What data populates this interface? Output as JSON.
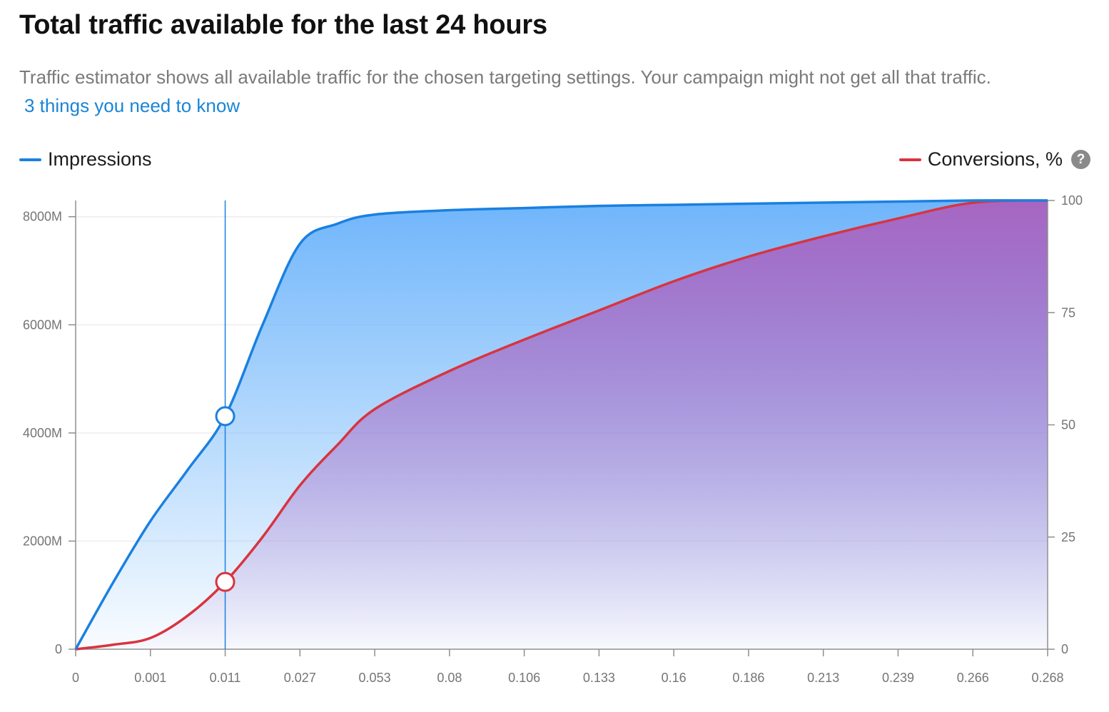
{
  "header": {
    "title": "Total traffic available for the last 24 hours",
    "subtitle": "Traffic estimator shows all available traffic for the chosen targeting settings. Your campaign might not get all that traffic.",
    "link_label": "3 things you need to know"
  },
  "help_icon": {
    "name": "help-icon",
    "glyph": "?"
  },
  "colors": {
    "impressions": "#1a80e0",
    "conversions": "#d8343f",
    "impressions_fill": "#6fb5fb",
    "conversions_fill": "#a766c2"
  },
  "chart_data": {
    "type": "area",
    "x_tick_labels": [
      "0",
      "0.001",
      "0.011",
      "0.027",
      "0.053",
      "0.08",
      "0.106",
      "0.133",
      "0.16",
      "0.186",
      "0.213",
      "0.239",
      "0.266",
      "0.268"
    ],
    "x": [
      0,
      0.5,
      1,
      1.5,
      2,
      2.5,
      3,
      3.5,
      4,
      5,
      6,
      7,
      8,
      9,
      10,
      11,
      12,
      13
    ],
    "y_left_ticks": [
      "0",
      "2000M",
      "4000M",
      "6000M",
      "8000M"
    ],
    "y_left_range": [
      0,
      8300
    ],
    "y_left_unit": "M",
    "y_right_ticks": [
      "0",
      "25",
      "50",
      "75",
      "100"
    ],
    "y_right_range": [
      0,
      100
    ],
    "grid": "horizontal",
    "legend": {
      "left": "top-left",
      "right": "top-right"
    },
    "series": [
      {
        "name": "Impressions",
        "axis": "left",
        "values": [
          0,
          1230,
          2370,
          3320,
          4310,
          6000,
          7500,
          7870,
          8040,
          8120,
          8160,
          8200,
          8220,
          8240,
          8260,
          8280,
          8300,
          8300
        ]
      },
      {
        "name": "Conversions, %",
        "axis": "right",
        "values": [
          0,
          1.0,
          2.5,
          7.5,
          15.0,
          25.0,
          36.5,
          45.5,
          53.5,
          62.0,
          69.0,
          75.5,
          82.0,
          87.5,
          92.0,
          96.0,
          99.5,
          100
        ]
      }
    ],
    "selected": {
      "x_label": "0.011",
      "x": 2,
      "impressions": 4310,
      "conversions": 15.0
    }
  }
}
